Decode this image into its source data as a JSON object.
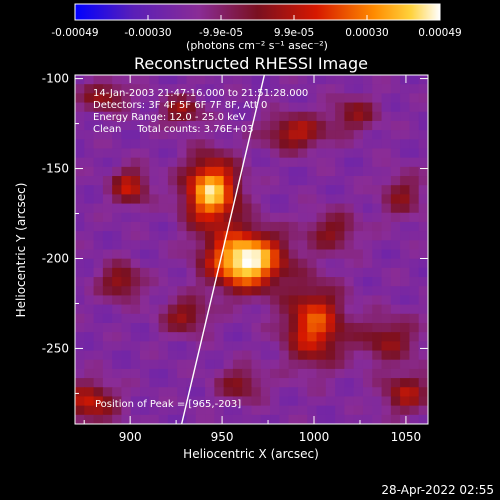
{
  "chart_data": {
    "type": "heatmap",
    "title": "Reconstructed RHESSI Image",
    "xlabel": "Heliocentric X (arcsec)",
    "ylabel": "Heliocentric Y (arcsec)",
    "xlim": [
      870,
      1062
    ],
    "ylim": [
      -292,
      -98
    ],
    "xticks": [
      900,
      950,
      1000,
      1050
    ],
    "yticks": [
      -100,
      -150,
      -200,
      -250
    ],
    "colorbar": {
      "range": [
        -0.00049,
        0.00049
      ],
      "ticks": [
        "-0.00049",
        "-0.00030",
        "-9.9e-05",
        "9.9e-05",
        "0.00030",
        "0.00049"
      ],
      "label": "(photons cm⁻² s⁻¹ asec⁻²)"
    },
    "annotations": [
      "14-Jan-2003 21:47:16.000 to 21:51:28.000",
      "Detectors: 3F 4F 5F 6F 7F 8F, Att 0",
      "Energy Range: 12.0 - 25.0 keV",
      "Clean     Total counts: 3.76E+03"
    ],
    "peak_label": "Position of Peak = [965,-203]",
    "peak": [
      965,
      -203
    ],
    "limb_line": [
      [
        928,
        -292
      ],
      [
        973,
        -98
      ]
    ],
    "sources": [
      {
        "x": 963,
        "y": -201,
        "sx": 14,
        "sy": 11,
        "amp": 1.0
      },
      {
        "x": 944,
        "y": -163,
        "sx": 10,
        "sy": 13,
        "amp": 0.85
      },
      {
        "x": 1000,
        "y": -237,
        "sx": 11,
        "sy": 15,
        "amp": 0.6
      },
      {
        "x": 900,
        "y": -160,
        "sx": 7,
        "sy": 7,
        "amp": 0.45
      },
      {
        "x": 886,
        "y": -110,
        "sx": 9,
        "sy": 6,
        "amp": 0.35
      },
      {
        "x": 928,
        "y": -118,
        "sx": 8,
        "sy": 6,
        "amp": 0.35
      },
      {
        "x": 990,
        "y": -130,
        "sx": 12,
        "sy": 7,
        "amp": 0.42
      },
      {
        "x": 1022,
        "y": -120,
        "sx": 9,
        "sy": 7,
        "amp": 0.3
      },
      {
        "x": 1048,
        "y": -165,
        "sx": 8,
        "sy": 9,
        "amp": 0.28
      },
      {
        "x": 895,
        "y": -213,
        "sx": 8,
        "sy": 7,
        "amp": 0.38
      },
      {
        "x": 930,
        "y": -232,
        "sx": 9,
        "sy": 7,
        "amp": 0.35
      },
      {
        "x": 878,
        "y": -280,
        "sx": 10,
        "sy": 8,
        "amp": 0.45
      },
      {
        "x": 1040,
        "y": -245,
        "sx": 12,
        "sy": 9,
        "amp": 0.32
      },
      {
        "x": 1050,
        "y": -275,
        "sx": 9,
        "sy": 8,
        "amp": 0.38
      },
      {
        "x": 960,
        "y": -270,
        "sx": 9,
        "sy": 7,
        "amp": 0.3
      },
      {
        "x": 1010,
        "y": -185,
        "sx": 10,
        "sy": 8,
        "amp": 0.3
      }
    ]
  },
  "timestamp": "28-Apr-2022 02:55"
}
